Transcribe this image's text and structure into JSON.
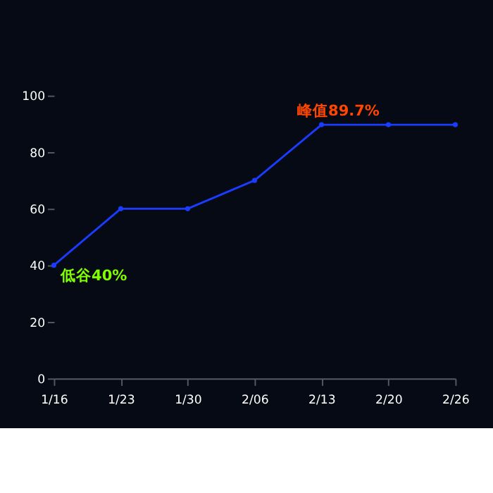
{
  "chart_data": {
    "type": "line",
    "categories": [
      "1/16",
      "1/23",
      "1/30",
      "2/06",
      "2/13",
      "2/20",
      "2/26"
    ],
    "series": [
      {
        "color": "#1a3cff",
        "values": [
          40,
          60,
          60,
          70,
          89.7,
          89.7,
          89.7
        ]
      }
    ],
    "ylim": [
      0,
      100
    ],
    "yticks": [
      0,
      20,
      40,
      60,
      80,
      100
    ],
    "grid": false,
    "marker": "circle",
    "line_style": "solid",
    "annotations": [
      {
        "text": "低谷40%",
        "x": "1/16",
        "y": 40
      },
      {
        "text": "峰值89.7%",
        "x": "2/13",
        "y": 89.7
      }
    ]
  }
}
